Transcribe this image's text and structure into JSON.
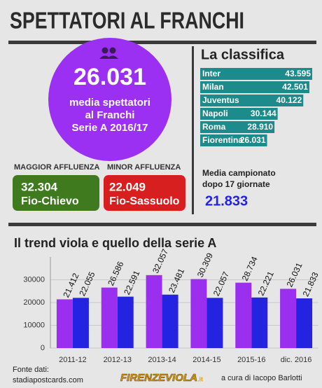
{
  "title": "SPETTATORI AL FRANCHI",
  "highlight": {
    "value": "26.031",
    "lines": [
      "media spettatori",
      "al Franchi",
      "Serie A 2016/17"
    ]
  },
  "max": {
    "label": "MAGGIOR AFFLUENZA",
    "value": "32.304",
    "match": "Fio-Chievo"
  },
  "min": {
    "label": "MINOR AFFLUENZA",
    "value": "22.049",
    "match": "Fio-Sassuolo"
  },
  "league": {
    "lines": [
      "Media campionato",
      "dopo 17 giornate"
    ],
    "value": "21.833"
  },
  "footer": {
    "source": [
      "Fonte dati:",
      "stadiapostcards.com"
    ],
    "logo": [
      "FIRENZEVIOLA",
      ".it"
    ],
    "credit": "a cura di Iacopo Barlotti"
  },
  "chart_data": [
    {
      "type": "hbar",
      "title": "La classifica",
      "categories": [
        "Inter",
        "Milan",
        "Juventus",
        "Napoli",
        "Roma",
        "Fiorentina"
      ],
      "values": [
        43595,
        42501,
        40122,
        30144,
        28910,
        26031
      ],
      "value_labels": [
        "43.595",
        "42.501",
        "40.122",
        "30.144",
        "28.910",
        "26.031"
      ],
      "color": "#1d8a8c"
    },
    {
      "type": "bar",
      "title": "Il trend viola e quello della serie A",
      "categories": [
        "2011-12",
        "2012-13",
        "2013-14",
        "2014-15",
        "2015-16",
        "dic. 2016"
      ],
      "series": [
        {
          "color": "#9a2ff0",
          "values": [
            21412,
            26586,
            32057,
            30309,
            28734,
            26031
          ],
          "value_labels": [
            "21.412",
            "26.586",
            "32.057",
            "30.309",
            "28.734",
            "26.031"
          ]
        },
        {
          "color": "#2323e0",
          "values": [
            22055,
            22591,
            23481,
            22057,
            22221,
            21833
          ],
          "value_labels": [
            "22.055",
            "22.591",
            "23.481",
            "22.057",
            "22.221",
            "21.833"
          ]
        }
      ],
      "ylim": [
        0,
        40000
      ],
      "yticks": [
        0,
        10000,
        20000,
        30000
      ],
      "grid": true
    }
  ]
}
